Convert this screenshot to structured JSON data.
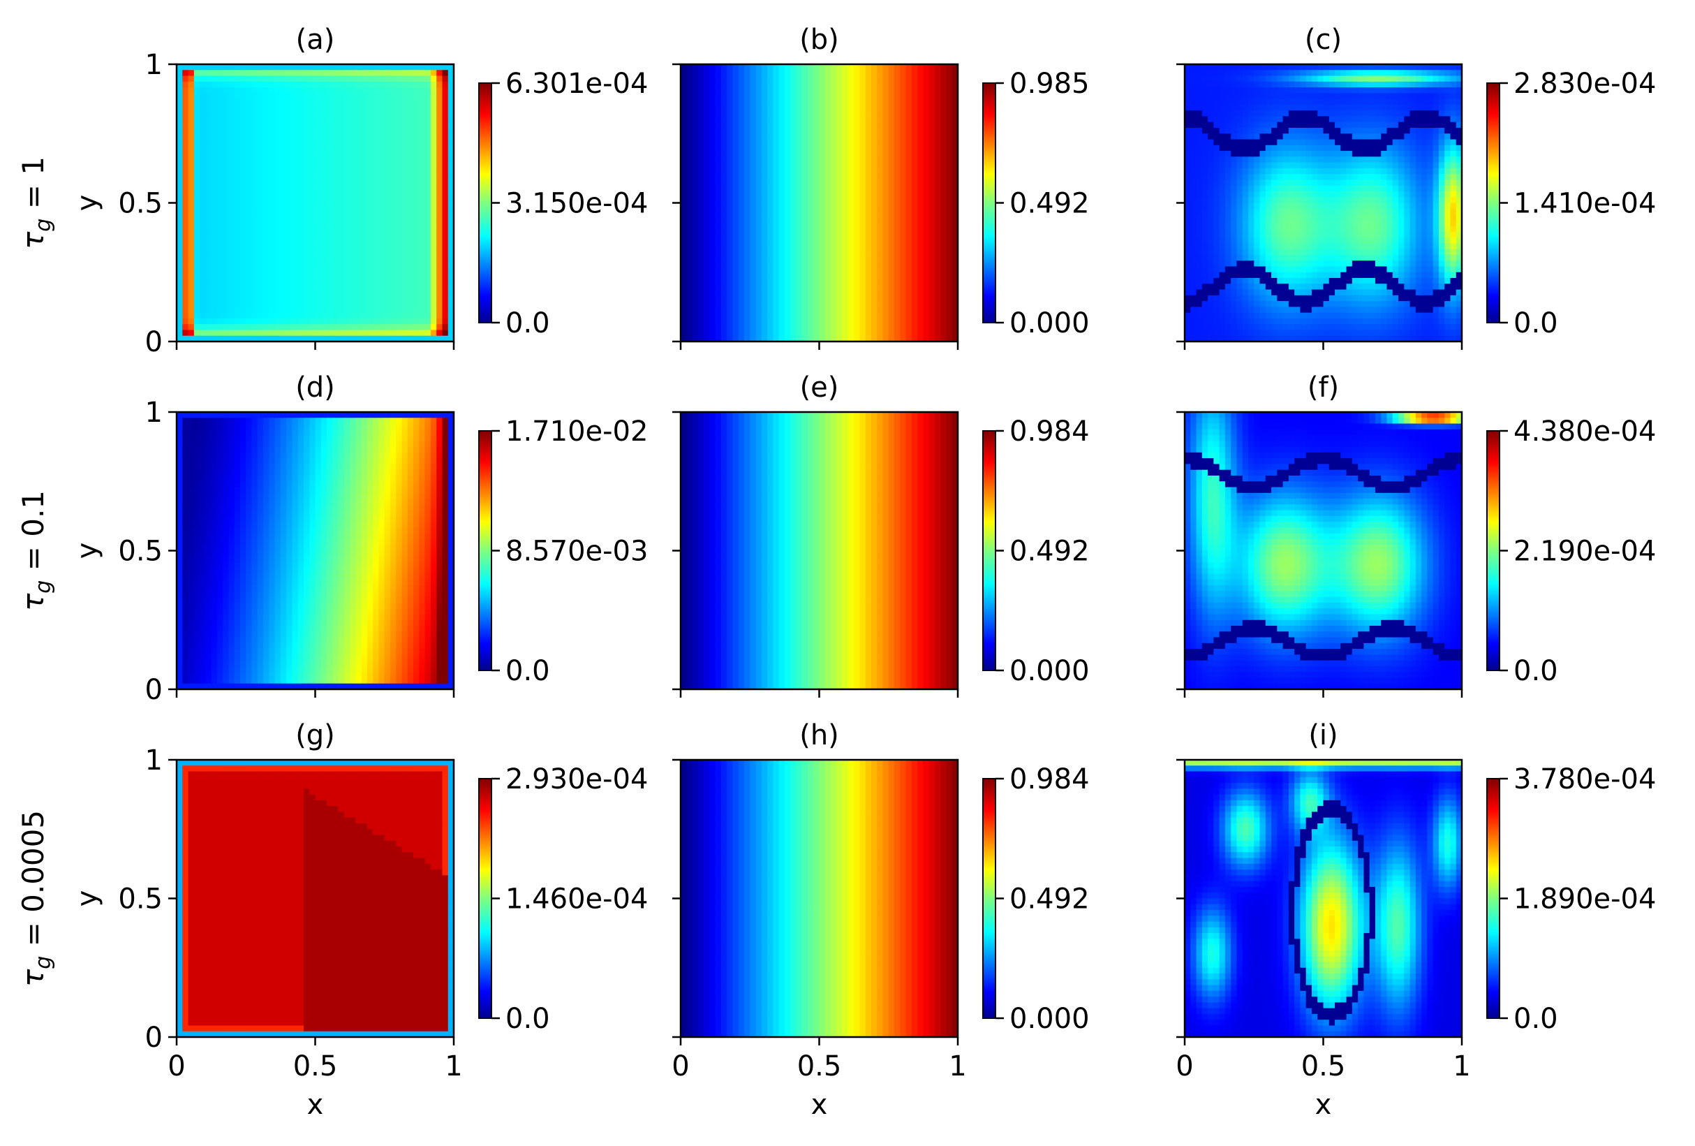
{
  "chart_data": [
    {
      "panel": "(a)",
      "type": "heatmap",
      "pattern": "a",
      "ylabel": "y",
      "xlim": [
        0,
        1
      ],
      "ylim": [
        0,
        1
      ],
      "xticks": [],
      "yticks": [
        "0",
        "0.5",
        "1"
      ],
      "colormap": "jet",
      "colorbar": {
        "min": 0.0,
        "max": 0.0006301,
        "ticks": [
          "0.0",
          "3.150e-04",
          "6.301e-04"
        ]
      }
    },
    {
      "panel": "(b)",
      "type": "heatmap",
      "pattern": "grad",
      "xlim": [
        0,
        1
      ],
      "ylim": [
        0,
        1
      ],
      "xticks": [],
      "yticks": [],
      "colormap": "jet",
      "colorbar": {
        "min": 0.0,
        "max": 0.985,
        "ticks": [
          "0.000",
          "0.492",
          "0.985"
        ]
      }
    },
    {
      "panel": "(c)",
      "type": "heatmap",
      "pattern": "c",
      "xlim": [
        0,
        1
      ],
      "ylim": [
        0,
        1
      ],
      "xticks": [],
      "yticks": [],
      "colormap": "jet",
      "colorbar": {
        "min": 0.0,
        "max": 0.000283,
        "ticks": [
          "0.0",
          "1.410e-04",
          "2.830e-04"
        ]
      }
    },
    {
      "panel": "(d)",
      "type": "heatmap",
      "pattern": "d",
      "ylabel": "y",
      "xlim": [
        0,
        1
      ],
      "ylim": [
        0,
        1
      ],
      "xticks": [],
      "yticks": [
        "0",
        "0.5",
        "1"
      ],
      "colormap": "jet",
      "colorbar": {
        "min": 0.0,
        "max": 0.0171,
        "ticks": [
          "0.0",
          "8.570e-03",
          "1.710e-02"
        ]
      }
    },
    {
      "panel": "(e)",
      "type": "heatmap",
      "pattern": "grad",
      "xlim": [
        0,
        1
      ],
      "ylim": [
        0,
        1
      ],
      "xticks": [],
      "yticks": [],
      "colormap": "jet",
      "colorbar": {
        "min": 0.0,
        "max": 0.984,
        "ticks": [
          "0.000",
          "0.492",
          "0.984"
        ]
      }
    },
    {
      "panel": "(f)",
      "type": "heatmap",
      "pattern": "f",
      "xlim": [
        0,
        1
      ],
      "ylim": [
        0,
        1
      ],
      "xticks": [],
      "yticks": [],
      "colormap": "jet",
      "colorbar": {
        "min": 0.0,
        "max": 0.000438,
        "ticks": [
          "0.0",
          "2.190e-04",
          "4.380e-04"
        ]
      }
    },
    {
      "panel": "(g)",
      "type": "heatmap",
      "pattern": "g",
      "ylabel": "y",
      "xlabel": "x",
      "xlim": [
        0,
        1
      ],
      "ylim": [
        0,
        1
      ],
      "xticks": [
        "0",
        "0.5",
        "1"
      ],
      "yticks": [
        "0",
        "0.5",
        "1"
      ],
      "colormap": "jet",
      "colorbar": {
        "min": 0.0,
        "max": 0.000293,
        "ticks": [
          "0.0",
          "1.460e-04",
          "2.930e-04"
        ]
      }
    },
    {
      "panel": "(h)",
      "type": "heatmap",
      "pattern": "grad",
      "xlabel": "x",
      "xlim": [
        0,
        1
      ],
      "ylim": [
        0,
        1
      ],
      "xticks": [
        "0",
        "0.5",
        "1"
      ],
      "yticks": [],
      "colormap": "jet",
      "colorbar": {
        "min": 0.0,
        "max": 0.984,
        "ticks": [
          "0.000",
          "0.492",
          "0.984"
        ]
      }
    },
    {
      "panel": "(i)",
      "type": "heatmap",
      "pattern": "i",
      "xlabel": "x",
      "xlim": [
        0,
        1
      ],
      "ylim": [
        0,
        1
      ],
      "xticks": [
        "0",
        "0.5",
        "1"
      ],
      "yticks": [],
      "colormap": "jet",
      "colorbar": {
        "min": 0.0,
        "max": 0.000378,
        "ticks": [
          "0.0",
          "1.890e-04",
          "3.780e-04"
        ]
      }
    }
  ],
  "row_labels": [
    "τ_g = 1",
    "τ_g = 0.1",
    "τ_g = 0.0005"
  ]
}
